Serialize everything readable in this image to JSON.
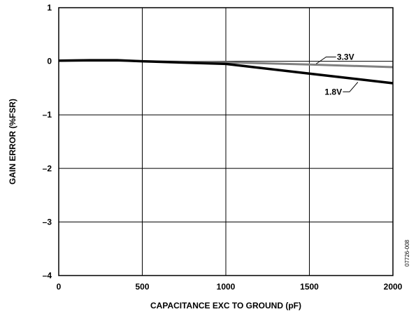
{
  "chart_data": {
    "type": "line",
    "xlabel": "CAPACITANCE EXC TO GROUND (pF)",
    "ylabel": "GAIN ERROR (%FSR)",
    "xlim": [
      0,
      2000
    ],
    "ylim": [
      -4,
      1
    ],
    "x_ticks": [
      0,
      500,
      1000,
      1500,
      2000
    ],
    "y_ticks": [
      1,
      0,
      -1,
      -2,
      -3,
      -4
    ],
    "x_tick_labels": [
      "0",
      "500",
      "1000",
      "1500",
      "2000"
    ],
    "y_tick_labels": [
      "1",
      "0",
      "–1",
      "–2",
      "–3",
      "–4"
    ],
    "grid": true,
    "figure_id": "07726-008",
    "series": [
      {
        "name": "3.3V",
        "color": "#808080",
        "x": [
          0,
          200,
          350,
          500,
          1000,
          1500,
          2000
        ],
        "y": [
          0.01,
          0.02,
          0.02,
          0.0,
          -0.02,
          -0.06,
          -0.11
        ]
      },
      {
        "name": "1.8V",
        "color": "#000000",
        "x": [
          0,
          200,
          350,
          500,
          1000,
          1500,
          2000
        ],
        "y": [
          0.01,
          0.02,
          0.02,
          0.0,
          -0.05,
          -0.23,
          -0.41
        ]
      }
    ]
  }
}
